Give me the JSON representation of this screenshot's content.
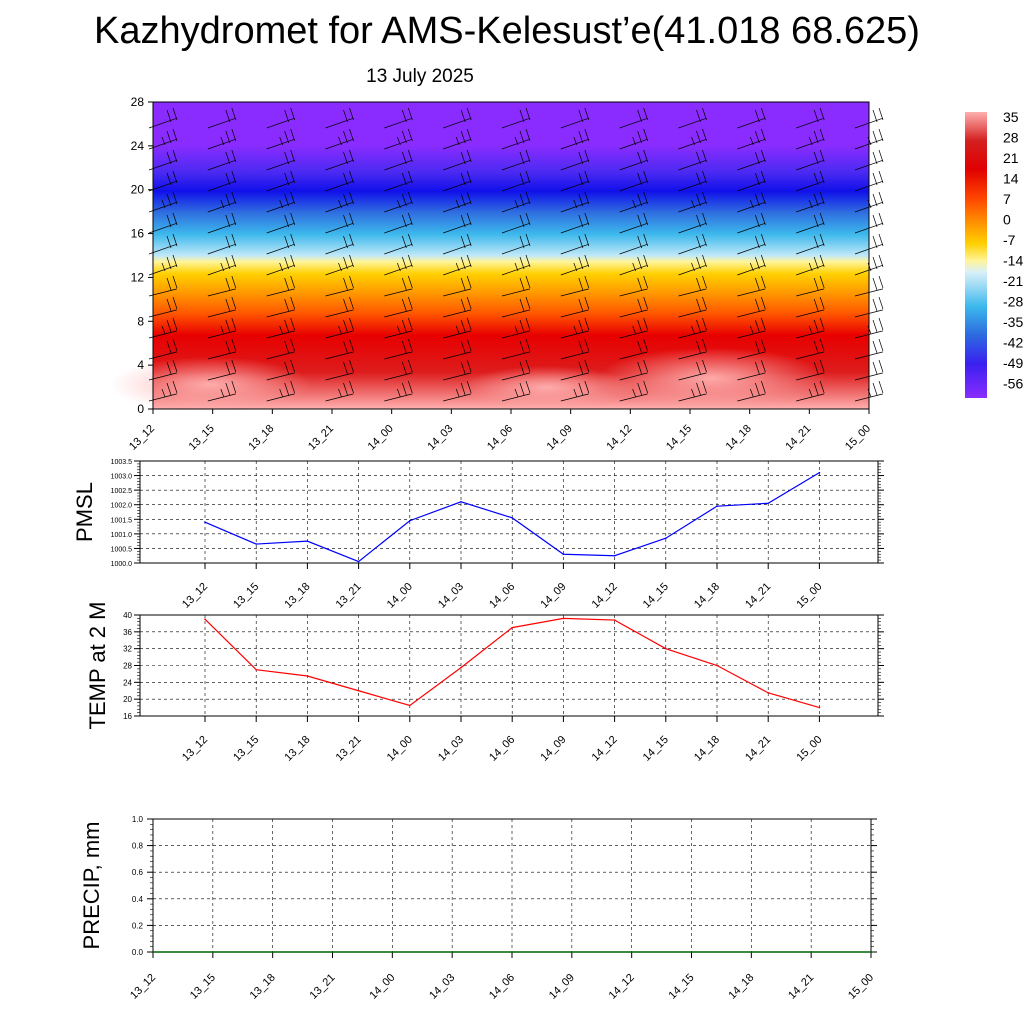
{
  "title": "Kazhydromet for AMS-Kelesust’e(41.018 68.625)",
  "subtitle": "13 July 2025",
  "x_ticks": [
    "13_12",
    "13_15",
    "13_18",
    "13_21",
    "14_00",
    "14_03",
    "14_06",
    "14_09",
    "14_12",
    "14_15",
    "14_18",
    "14_21",
    "15_00"
  ],
  "colorbar_labels": [
    "35",
    "28",
    "21",
    "14",
    "7",
    "0",
    "-7",
    "-14",
    "-21",
    "-28",
    "-35",
    "-42",
    "-49",
    "-56"
  ],
  "chart_data": [
    {
      "type": "heatmap",
      "title": "",
      "xlabel": "",
      "ylabel": "",
      "x": [
        "13_12",
        "13_15",
        "13_18",
        "13_21",
        "14_00",
        "14_03",
        "14_06",
        "14_09",
        "14_12",
        "14_15",
        "14_18",
        "14_21",
        "15_00"
      ],
      "y_ticks": [
        "0",
        "4",
        "8",
        "12",
        "16",
        "20",
        "24",
        "28"
      ],
      "ylim": [
        0,
        28
      ],
      "color_levels": [
        35,
        28,
        21,
        14,
        7,
        0,
        -7,
        -14,
        -21,
        -28,
        -35,
        -42,
        -49,
        -56
      ],
      "approx_profile": [
        {
          "y": 0,
          "value": 35
        },
        {
          "y": 2,
          "value": 30
        },
        {
          "y": 5,
          "value": 26
        },
        {
          "y": 8,
          "value": 21
        },
        {
          "y": 11,
          "value": 10
        },
        {
          "y": 13,
          "value": -5
        },
        {
          "y": 14,
          "value": -15
        },
        {
          "y": 16,
          "value": -28
        },
        {
          "y": 18,
          "value": -38
        },
        {
          "y": 20,
          "value": -47
        },
        {
          "y": 21,
          "value": -52
        },
        {
          "y": 24,
          "value": -58
        },
        {
          "y": 28,
          "value": -60
        }
      ],
      "overlay": "wind barbs"
    },
    {
      "type": "line",
      "ylabel": "PMSL",
      "x": [
        "13_12",
        "13_15",
        "13_18",
        "13_21",
        "14_00",
        "14_03",
        "14_06",
        "14_09",
        "14_12",
        "14_15",
        "14_18",
        "14_21",
        "15_00"
      ],
      "values": [
        1001.4,
        1000.65,
        1000.75,
        1000.05,
        1001.45,
        1002.1,
        1001.55,
        1000.3,
        1000.25,
        1000.85,
        1001.95,
        1002.05,
        1003.1
      ],
      "y_ticks": [
        "1000.0",
        "1000.5",
        "1001.0",
        "1001.5",
        "1002.0",
        "1002.5",
        "1003.0",
        "1003.5"
      ],
      "ylim": [
        1000.0,
        1003.5
      ],
      "color": "#0000ff",
      "grid": true
    },
    {
      "type": "line",
      "ylabel": "TEMP at 2 M",
      "x": [
        "13_12",
        "13_15",
        "13_18",
        "13_21",
        "14_00",
        "14_03",
        "14_06",
        "14_09",
        "14_12",
        "14_15",
        "14_18",
        "14_21",
        "15_00"
      ],
      "values": [
        39.0,
        27.0,
        25.5,
        22.0,
        18.5,
        27.5,
        37.0,
        39.2,
        38.8,
        32.0,
        28.0,
        21.5,
        18.0
      ],
      "y_ticks": [
        "16",
        "20",
        "24",
        "28",
        "32",
        "36",
        "40"
      ],
      "ylim": [
        16,
        40
      ],
      "color": "#ff0000",
      "grid": true
    },
    {
      "type": "line",
      "ylabel": "PRECIP, mm",
      "x": [
        "13_12",
        "13_15",
        "13_18",
        "13_21",
        "14_00",
        "14_03",
        "14_06",
        "14_09",
        "14_12",
        "14_15",
        "14_18",
        "14_21",
        "15_00"
      ],
      "values": [
        0,
        0,
        0,
        0,
        0,
        0,
        0,
        0,
        0,
        0,
        0,
        0,
        0
      ],
      "y_ticks": [
        "0.0",
        "0.2",
        "0.4",
        "0.6",
        "0.8",
        "1.0"
      ],
      "ylim": [
        0,
        1.0
      ],
      "color": "#006400",
      "grid": true
    }
  ]
}
